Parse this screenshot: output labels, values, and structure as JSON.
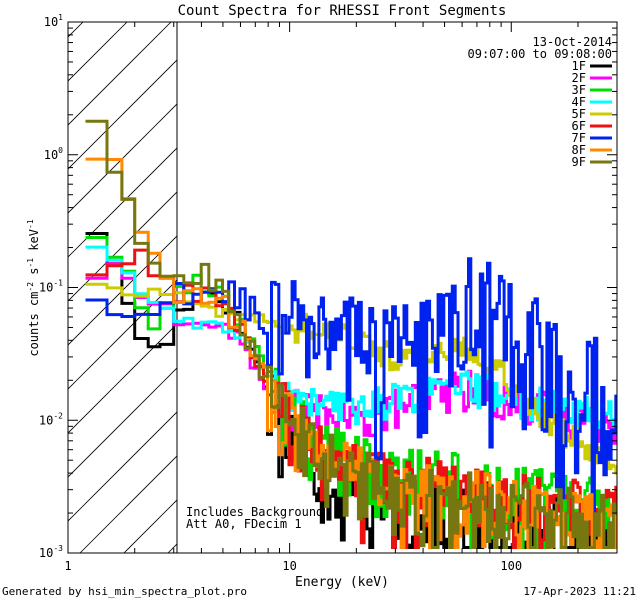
{
  "chart_data": {
    "type": "line",
    "title": "Count Spectra for RHESSI Front Segments",
    "xlabel": "Energy (keV)",
    "ylabel_parts": [
      "counts cm",
      "-2",
      " s",
      "-1",
      " keV",
      "-1"
    ],
    "xscale": "log",
    "yscale": "log",
    "xlim": [
      1,
      300
    ],
    "ylim": [
      0.001,
      10
    ],
    "x_ticks": [
      1,
      10,
      100
    ],
    "x_tick_labels": [
      "1",
      "10",
      "100"
    ],
    "y_ticks": [
      0.001,
      0.01,
      0.1,
      1,
      10
    ],
    "y_tick_base": "10",
    "y_tick_exponents": [
      "-3",
      "-2",
      "-1",
      "0",
      "1"
    ],
    "date": "13-Oct-2014",
    "time_range": "09:07:00 to 09:08:00",
    "annotation_lines": [
      "Includes Background",
      "Att A0, FDecim 1"
    ],
    "shaded_region_x": [
      1,
      3
    ],
    "footer_left": "Generated by hsi_min_spectra_plot.pro",
    "footer_right": "17-Apr-2023 11:21",
    "series": [
      {
        "name": "1F",
        "color": "#000000",
        "style": "steady",
        "x": [
          1.3,
          1.5,
          1.75,
          2.0,
          2.3,
          2.6,
          3.0,
          3.5,
          4.0,
          5.0,
          6.0,
          7.0,
          8.0,
          10.0,
          12.0,
          15.0,
          20.0,
          25.0,
          30.0,
          40.0,
          50.0,
          60.0,
          80.0,
          100.0,
          150.0,
          200.0,
          280.0
        ],
        "y": [
          0.34,
          0.17,
          0.1,
          0.06,
          0.035,
          0.03,
          0.055,
          0.08,
          0.1,
          0.08,
          0.05,
          0.03,
          0.018,
          0.009,
          0.006,
          0.004,
          0.003,
          0.0028,
          0.0027,
          0.0025,
          0.0023,
          0.0022,
          0.002,
          0.0018,
          0.0016,
          0.0015,
          0.0014
        ],
        "noise": 0.7
      },
      {
        "name": "2F",
        "color": "#ff00ff",
        "style": "steady",
        "x": [
          1.3,
          1.5,
          1.75,
          2.0,
          2.3,
          2.6,
          3.0,
          3.5,
          4.0,
          5.0,
          6.0,
          7.0,
          8.0,
          10.0,
          12.0,
          15.0,
          20.0,
          25.0,
          30.0,
          40.0,
          50.0,
          60.0,
          80.0,
          100.0,
          150.0,
          200.0,
          280.0
        ],
        "y": [
          0.12,
          0.14,
          0.13,
          0.1,
          0.09,
          0.08,
          0.06,
          0.05,
          0.055,
          0.05,
          0.04,
          0.025,
          0.018,
          0.013,
          0.012,
          0.011,
          0.01,
          0.011,
          0.013,
          0.015,
          0.017,
          0.018,
          0.016,
          0.014,
          0.012,
          0.011,
          0.01
        ],
        "noise": 0.35
      },
      {
        "name": "3F",
        "color": "#00dd00",
        "style": "steady",
        "x": [
          1.3,
          1.5,
          1.75,
          2.0,
          2.3,
          2.6,
          3.0,
          3.5,
          4.0,
          5.0,
          6.0,
          7.0,
          8.0,
          10.0,
          12.0,
          15.0,
          20.0,
          25.0,
          30.0,
          40.0,
          50.0,
          60.0,
          80.0,
          100.0,
          150.0,
          200.0,
          280.0
        ],
        "y": [
          0.26,
          0.24,
          0.16,
          0.09,
          0.045,
          0.06,
          0.09,
          0.1,
          0.11,
          0.09,
          0.06,
          0.035,
          0.02,
          0.012,
          0.008,
          0.006,
          0.005,
          0.0045,
          0.004,
          0.004,
          0.0038,
          0.0035,
          0.0033,
          0.003,
          0.0028,
          0.0025,
          0.0023
        ],
        "noise": 0.55
      },
      {
        "name": "4F",
        "color": "#00ffff",
        "style": "steady",
        "x": [
          1.3,
          1.5,
          1.75,
          2.0,
          2.3,
          2.6,
          3.0,
          3.5,
          4.0,
          5.0,
          6.0,
          7.0,
          8.0,
          10.0,
          12.0,
          15.0,
          20.0,
          25.0,
          30.0,
          40.0,
          50.0,
          60.0,
          80.0,
          100.0,
          150.0,
          200.0,
          280.0
        ],
        "y": [
          0.21,
          0.2,
          0.14,
          0.1,
          0.08,
          0.07,
          0.06,
          0.055,
          0.05,
          0.05,
          0.045,
          0.03,
          0.02,
          0.016,
          0.014,
          0.013,
          0.013,
          0.014,
          0.015,
          0.016,
          0.017,
          0.018,
          0.017,
          0.015,
          0.013,
          0.012,
          0.011
        ],
        "noise": 0.3
      },
      {
        "name": "5F",
        "color": "#cccc00",
        "style": "steady",
        "x": [
          1.3,
          1.5,
          1.75,
          2.0,
          2.3,
          2.6,
          3.0,
          3.5,
          4.0,
          5.0,
          6.0,
          7.0,
          8.0,
          10.0,
          12.0,
          15.0,
          20.0,
          25.0,
          30.0,
          40.0,
          50.0,
          60.0,
          80.0,
          100.0,
          150.0,
          200.0,
          280.0
        ],
        "y": [
          0.11,
          0.1,
          0.1,
          0.09,
          0.09,
          0.09,
          0.09,
          0.08,
          0.07,
          0.065,
          0.06,
          0.06,
          0.055,
          0.05,
          0.052,
          0.05,
          0.042,
          0.035,
          0.028,
          0.03,
          0.035,
          0.037,
          0.03,
          0.02,
          0.01,
          0.007,
          0.005
        ],
        "noise": 0.25
      },
      {
        "name": "6F",
        "color": "#ee1111",
        "style": "steady",
        "x": [
          1.3,
          1.5,
          1.75,
          2.0,
          2.3,
          2.6,
          3.0,
          3.5,
          4.0,
          5.0,
          6.0,
          7.0,
          8.0,
          10.0,
          12.0,
          15.0,
          20.0,
          25.0,
          30.0,
          40.0,
          50.0,
          60.0,
          80.0,
          100.0,
          150.0,
          200.0,
          280.0
        ],
        "y": [
          0.13,
          0.12,
          0.16,
          0.18,
          0.14,
          0.13,
          0.08,
          0.09,
          0.1,
          0.08,
          0.05,
          0.03,
          0.02,
          0.011,
          0.007,
          0.005,
          0.004,
          0.0036,
          0.0034,
          0.0033,
          0.0032,
          0.003,
          0.0028,
          0.0026,
          0.0024,
          0.0022,
          0.002
        ],
        "noise": 0.6
      },
      {
        "name": "7F",
        "color": "#0022ee",
        "style": "spiky",
        "x": [
          1.3,
          1.5,
          1.75,
          2.0,
          2.3,
          2.6,
          3.0,
          3.5,
          4.0,
          5.0,
          6.0,
          7.0,
          8.0,
          10.0,
          12.0,
          15.0,
          20.0,
          25.0,
          30.0,
          40.0,
          50.0,
          60.0,
          80.0,
          100.0,
          150.0,
          200.0,
          280.0
        ],
        "y": [
          0.1,
          0.04,
          0.07,
          0.06,
          0.05,
          0.07,
          0.09,
          0.08,
          0.1,
          0.1,
          0.08,
          0.07,
          0.06,
          0.06,
          0.055,
          0.05,
          0.045,
          0.04,
          0.045,
          0.07,
          0.09,
          0.1,
          0.08,
          0.06,
          0.04,
          0.025,
          0.02
        ],
        "noise": 0.9
      },
      {
        "name": "8F",
        "color": "#ff8800",
        "style": "steady",
        "x": [
          1.3,
          1.5,
          1.75,
          2.0,
          2.3,
          2.6,
          3.0,
          3.5,
          4.0,
          5.0,
          6.0,
          7.0,
          8.0,
          10.0,
          12.0,
          15.0,
          20.0,
          25.0,
          30.0,
          40.0,
          50.0,
          60.0,
          80.0,
          100.0,
          150.0,
          200.0,
          280.0
        ],
        "y": [
          0.9,
          1.0,
          0.6,
          0.35,
          0.2,
          0.12,
          0.08,
          0.08,
          0.09,
          0.08,
          0.05,
          0.03,
          0.02,
          0.01,
          0.007,
          0.005,
          0.004,
          0.0035,
          0.0033,
          0.003,
          0.0028,
          0.0027,
          0.0025,
          0.0023,
          0.0021,
          0.002,
          0.0018
        ],
        "noise": 0.6
      },
      {
        "name": "9F",
        "color": "#777711",
        "style": "steady",
        "x": [
          1.3,
          1.5,
          1.75,
          2.0,
          2.3,
          2.6,
          3.0,
          3.5,
          4.0,
          5.0,
          6.0,
          7.0,
          8.0,
          10.0,
          12.0,
          15.0,
          20.0,
          25.0,
          30.0,
          40.0,
          50.0,
          60.0,
          80.0,
          100.0,
          150.0,
          200.0,
          280.0
        ],
        "y": [
          1.9,
          1.3,
          0.6,
          0.3,
          0.2,
          0.15,
          0.1,
          0.11,
          0.13,
          0.1,
          0.06,
          0.03,
          0.018,
          0.01,
          0.007,
          0.005,
          0.004,
          0.0035,
          0.0033,
          0.003,
          0.0028,
          0.0026,
          0.0024,
          0.0022,
          0.002,
          0.0019,
          0.0018
        ],
        "noise": 0.6
      }
    ]
  }
}
